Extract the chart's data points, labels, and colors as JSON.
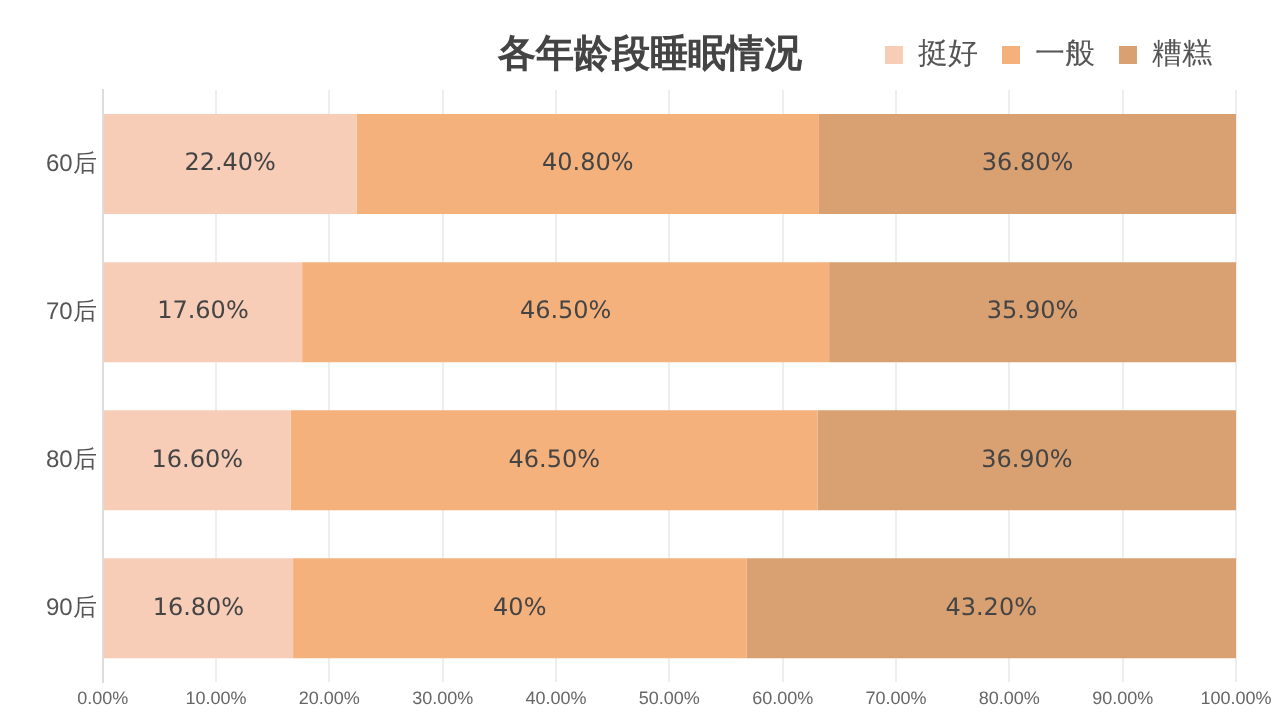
{
  "chart_data": {
    "type": "bar",
    "orientation": "horizontal",
    "stacked": true,
    "title": "各年龄段睡眠情况",
    "categories": [
      "60后",
      "70后",
      "80后",
      "90后"
    ],
    "series": [
      {
        "name": "挺好",
        "color": "#f7cdb8",
        "values": [
          22.4,
          17.6,
          16.6,
          16.8
        ],
        "value_labels": [
          "22.40%",
          "17.60%",
          "16.60%",
          "16.80%"
        ]
      },
      {
        "name": "一般",
        "color": "#f5b17c",
        "values": [
          40.8,
          46.5,
          46.5,
          40
        ],
        "value_labels": [
          "40.80%",
          "46.50%",
          "46.50%",
          "40%"
        ]
      },
      {
        "name": "糟糕",
        "color": "#d9a072",
        "values": [
          36.8,
          35.9,
          36.9,
          43.2
        ],
        "value_labels": [
          "36.80%",
          "35.90%",
          "36.90%",
          "43.20%"
        ]
      }
    ],
    "xlim": [
      0,
      100
    ],
    "xticks": [
      {
        "value": 0,
        "label": "0.00%"
      },
      {
        "value": 10,
        "label": "10.00%"
      },
      {
        "value": 20,
        "label": "20.00%"
      },
      {
        "value": 30,
        "label": "30.00%"
      },
      {
        "value": 40,
        "label": "40.00%"
      },
      {
        "value": 50,
        "label": "50.00%"
      },
      {
        "value": 60,
        "label": "60.00%"
      },
      {
        "value": 70,
        "label": "70.00%"
      },
      {
        "value": 80,
        "label": "80.00%"
      },
      {
        "value": 90,
        "label": "90.00%"
      },
      {
        "value": 100,
        "label": "100.00%"
      }
    ],
    "grid": "x",
    "legend": "top right"
  }
}
